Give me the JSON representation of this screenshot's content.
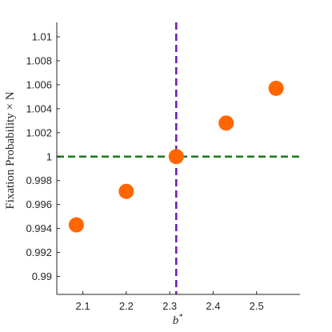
{
  "chart_data": {
    "type": "scatter",
    "title": "",
    "xlabel": "b*",
    "ylabel": "Fixation Probability × N",
    "xlim": [
      2.04,
      2.6
    ],
    "ylim": [
      0.9885,
      1.0112
    ],
    "x_ticks": [
      2.1,
      2.2,
      2.3,
      2.4,
      2.5
    ],
    "x_tick_labels": [
      "2.1",
      "2.2",
      "2.3",
      "2.4",
      "2.5"
    ],
    "y_ticks": [
      0.99,
      0.992,
      0.994,
      0.996,
      0.998,
      1.0,
      1.002,
      1.004,
      1.006,
      1.008,
      1.01
    ],
    "y_tick_labels": [
      "0.99",
      "0.992",
      "0.994",
      "0.996",
      "0.998",
      "1",
      "1.002",
      "1.004",
      "1.006",
      "1.008",
      "1.01"
    ],
    "points": [
      {
        "x": 2.085,
        "y": 0.9943
      },
      {
        "x": 2.2,
        "y": 0.9971
      },
      {
        "x": 2.315,
        "y": 1.0
      },
      {
        "x": 2.43,
        "y": 1.0028
      },
      {
        "x": 2.545,
        "y": 1.0057
      }
    ],
    "reference_lines": [
      {
        "orientation": "vertical",
        "value": 2.315,
        "color": "#6a1bb0",
        "style": "dashed"
      },
      {
        "orientation": "horizontal",
        "value": 1.0,
        "color": "#1a7a1a",
        "style": "dashed"
      }
    ],
    "marker_color": "#ff6600",
    "grid": false,
    "legend": "none"
  }
}
